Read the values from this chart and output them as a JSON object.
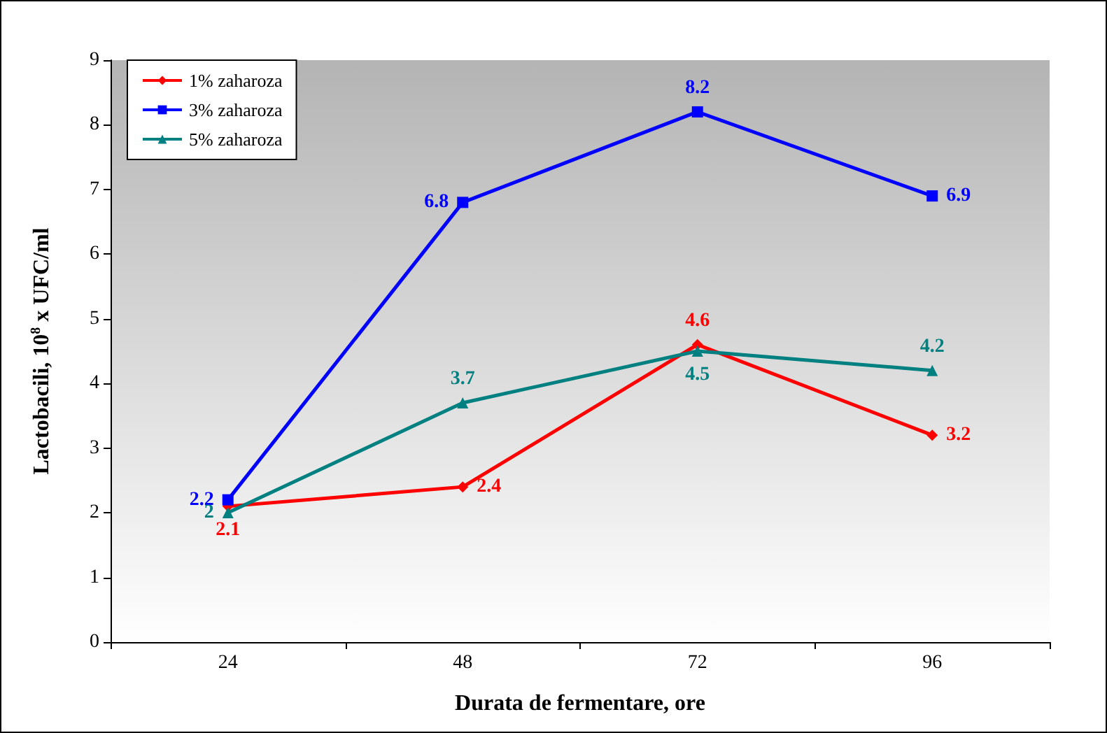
{
  "chart_data": {
    "type": "line",
    "xlabel": "Durata de fermentare, ore",
    "ylabel": "Lactobacili, 10$^{8}$ x UFC/ml",
    "categories": [
      "24",
      "48",
      "72",
      "96"
    ],
    "series": [
      {
        "name": "1% zaharoza",
        "color": "#ff0000",
        "marker": "diamond",
        "values": [
          2.1,
          2.4,
          4.6,
          3.2
        ]
      },
      {
        "name": "3% zaharoza",
        "color": "#0000ff",
        "marker": "square",
        "values": [
          2.2,
          6.8,
          8.2,
          6.9
        ]
      },
      {
        "name": "5% zaharoza",
        "color": "#008080",
        "marker": "triangle",
        "values": [
          2,
          3.7,
          4.5,
          4.2
        ]
      }
    ],
    "ylim": [
      0,
      9
    ],
    "yticks": [
      0,
      1,
      2,
      3,
      4,
      5,
      6,
      7,
      8,
      9
    ],
    "grid": false,
    "legend": "top left",
    "data_labels": true,
    "line_style": "solid"
  }
}
